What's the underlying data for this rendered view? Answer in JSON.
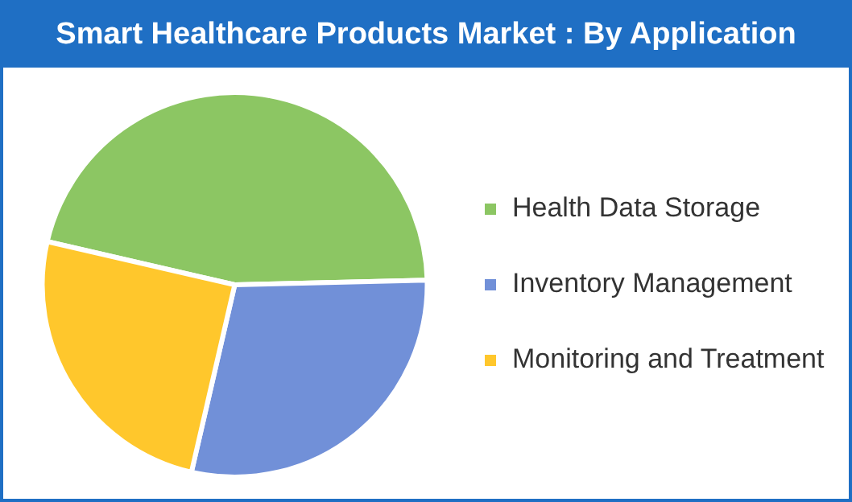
{
  "chart_data": {
    "type": "pie",
    "title": "Smart Healthcare Products Market : By Application",
    "categories": [
      "Health Data Storage",
      "Inventory Management",
      "Monitoring and Treatment"
    ],
    "values": [
      46,
      29,
      25
    ],
    "colors": [
      "#8cc663",
      "#7190d8",
      "#ffc72c"
    ],
    "legend": "right"
  }
}
